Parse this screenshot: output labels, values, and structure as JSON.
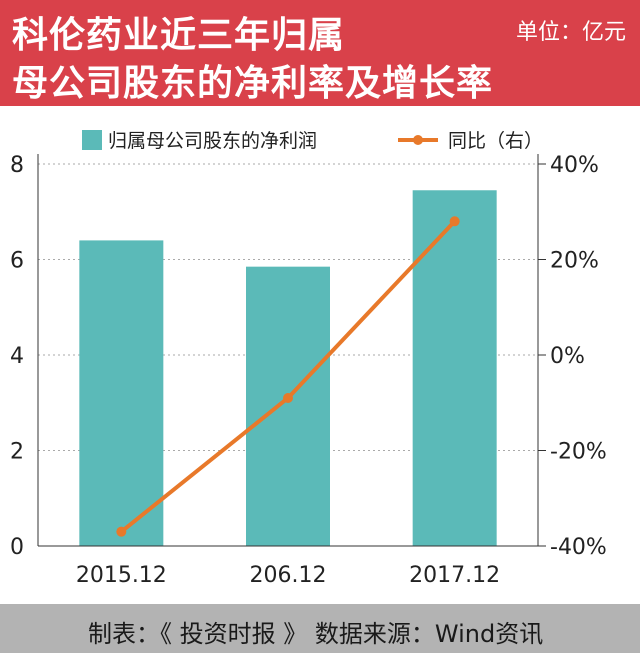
{
  "header": {
    "title_line1": "科伦药业近三年归属",
    "title_line2": "母公司股东的净利率及增长率",
    "unit": "单位：亿元"
  },
  "footer": {
    "text": "制表：《 投资时报 》  数据来源：Wind资讯"
  },
  "colors": {
    "header_bg": "#d9414a",
    "bar": "#5bbab8",
    "line": "#e8792a",
    "footer_bg": "#b3b3b3"
  },
  "chart_data": {
    "type": "bar",
    "categories": [
      "2015.12",
      "206.12",
      "2017.12"
    ],
    "series": [
      {
        "name": "归属母公司股东的净利润",
        "type": "bar",
        "axis": "left",
        "values": [
          6.4,
          5.85,
          7.45
        ]
      },
      {
        "name": "同比（右）",
        "type": "line",
        "axis": "right",
        "values": [
          -37,
          -9,
          28
        ]
      }
    ],
    "ylim_left": [
      0,
      8
    ],
    "yticks_left": [
      "0",
      "2",
      "4",
      "6",
      "8"
    ],
    "ylim_right": [
      -40,
      40
    ],
    "yticks_right": [
      "-40%",
      "-20%",
      "0%",
      "20%",
      "40%"
    ],
    "grid": true,
    "legend": "top"
  }
}
